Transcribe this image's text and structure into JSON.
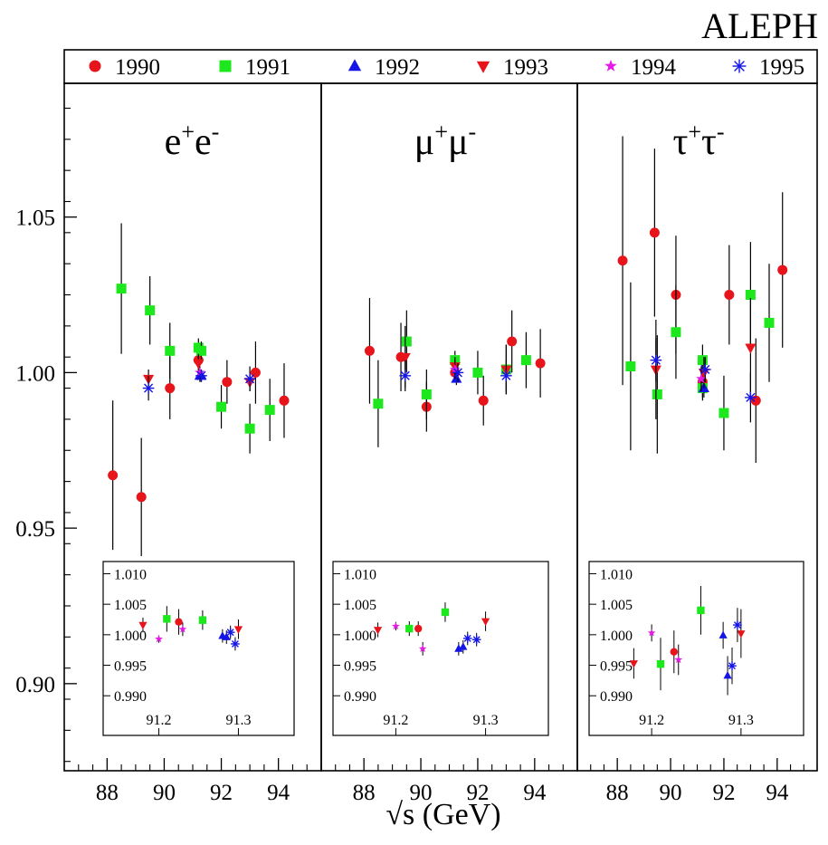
{
  "experiment": "ALEPH",
  "xlabel": "√s (GeV)",
  "colors": {
    "1990": "#e8141c",
    "1991": "#1de81d",
    "1992": "#1414e6",
    "1993": "#e8141c",
    "1994": "#e61ae6",
    "1995": "#1414e6"
  },
  "legend": [
    {
      "year": "1990",
      "marker": "circle"
    },
    {
      "year": "1991",
      "marker": "square"
    },
    {
      "year": "1992",
      "marker": "triangle-up"
    },
    {
      "year": "1993",
      "marker": "triangle-down"
    },
    {
      "year": "1994",
      "marker": "star"
    },
    {
      "year": "1995",
      "marker": "asterisk"
    }
  ],
  "chart_data": [
    {
      "type": "scatter",
      "title": "e⁺e⁻",
      "xlim": [
        86.5,
        95.5
      ],
      "ylim": [
        0.872,
        1.093
      ],
      "xticks": [
        88,
        90,
        92,
        94
      ],
      "yticks": [
        0.9,
        0.95,
        1.0,
        1.05
      ],
      "ytick_labels": [
        "0.90",
        "0.95",
        "1.00",
        "1.05"
      ],
      "series": [
        {
          "name": "1990",
          "points": [
            [
              88.2,
              0.967,
              0.024
            ],
            [
              89.2,
              0.96,
              0.019
            ],
            [
              90.2,
              0.995,
              0.01
            ],
            [
              91.2,
              1.004,
              0.003
            ],
            [
              92.2,
              0.997,
              0.007
            ],
            [
              93.2,
              1.0,
              0.01
            ],
            [
              94.2,
              0.991,
              0.012
            ]
          ]
        },
        {
          "name": "1991",
          "points": [
            [
              88.5,
              1.027,
              0.021
            ],
            [
              89.5,
              1.02,
              0.011
            ],
            [
              90.2,
              1.007,
              0.009
            ],
            [
              91.2,
              1.008,
              0.003
            ],
            [
              91.3,
              1.007,
              0.003
            ],
            [
              92.0,
              0.989,
              0.007
            ],
            [
              93.0,
              0.982,
              0.008
            ],
            [
              93.7,
              0.988,
              0.01
            ]
          ]
        },
        {
          "name": "1992",
          "points": [
            [
              91.25,
              0.999,
              0.002
            ],
            [
              91.3,
              0.999,
              0.002
            ]
          ]
        },
        {
          "name": "1993",
          "points": [
            [
              89.45,
              0.998,
              0.003
            ],
            [
              91.2,
              1.003,
              0.003
            ],
            [
              93.0,
              0.997,
              0.003
            ]
          ]
        },
        {
          "name": "1994",
          "points": [
            [
              91.25,
              1.0,
              0.002
            ]
          ]
        },
        {
          "name": "1995",
          "points": [
            [
              89.45,
              0.995,
              0.004
            ],
            [
              91.3,
              0.999,
              0.002
            ],
            [
              93.0,
              0.998,
              0.004
            ]
          ]
        }
      ],
      "inset": {
        "xlim": [
          91.13,
          91.37
        ],
        "ylim": [
          0.9835,
          1.012
        ],
        "xticks": [
          91.2,
          91.3
        ],
        "xtick_labels": [
          "91.2",
          "91.3"
        ],
        "yticks": [
          0.99,
          0.995,
          1.0,
          1.005,
          1.01
        ],
        "ytick_labels": [
          "0.990",
          "0.995",
          "1.000",
          "1.005",
          "1.010"
        ],
        "series": [
          {
            "name": "1990",
            "points": [
              [
                91.225,
                1.0021,
                0.0021
              ]
            ]
          },
          {
            "name": "1991",
            "points": [
              [
                91.21,
                1.0026,
                0.0021
              ],
              [
                91.255,
                1.0024,
                0.0016
              ]
            ]
          },
          {
            "name": "1992",
            "points": [
              [
                91.28,
                0.9998,
                0.0011
              ],
              [
                91.285,
                0.9996,
                0.0011
              ]
            ]
          },
          {
            "name": "1993",
            "points": [
              [
                91.18,
                1.0016,
                0.0012
              ],
              [
                91.3,
                1.0009,
                0.0016
              ]
            ]
          },
          {
            "name": "1994",
            "points": [
              [
                91.2,
                0.9993,
                0.0006
              ],
              [
                91.23,
                1.0009,
                0.0011
              ]
            ]
          },
          {
            "name": "1995",
            "points": [
              [
                91.29,
                1.0004,
                0.0011
              ],
              [
                91.296,
                0.9985,
                0.0011
              ]
            ]
          }
        ]
      }
    },
    {
      "type": "scatter",
      "title": "μ⁺μ⁻",
      "xlim": [
        86.5,
        95.5
      ],
      "ylim": [
        0.872,
        1.093
      ],
      "xticks": [
        88,
        90,
        92,
        94
      ],
      "series": [
        {
          "name": "1990",
          "points": [
            [
              88.2,
              1.007,
              0.017
            ],
            [
              89.3,
              1.005,
              0.011
            ],
            [
              90.2,
              0.989,
              0.008
            ],
            [
              91.2,
              1.0,
              0.003
            ],
            [
              92.2,
              0.991,
              0.008
            ],
            [
              93.2,
              1.01,
              0.01
            ],
            [
              94.2,
              1.003,
              0.011
            ]
          ]
        },
        {
          "name": "1991",
          "points": [
            [
              88.5,
              0.99,
              0.014
            ],
            [
              89.5,
              1.01,
              0.01
            ],
            [
              90.2,
              0.993,
              0.008
            ],
            [
              91.2,
              1.004,
              0.003
            ],
            [
              92.0,
              1.0,
              0.007
            ],
            [
              93.0,
              1.001,
              0.008
            ],
            [
              93.7,
              1.004,
              0.009
            ]
          ]
        },
        {
          "name": "1992",
          "points": [
            [
              91.25,
              0.998,
              0.002
            ]
          ]
        },
        {
          "name": "1993",
          "points": [
            [
              89.45,
              1.005,
              0.01
            ],
            [
              91.2,
              1.002,
              0.003
            ],
            [
              93.0,
              1.001,
              0.008
            ]
          ]
        },
        {
          "name": "1994",
          "points": [
            [
              91.2,
              1.001,
              0.003
            ]
          ]
        },
        {
          "name": "1995",
          "points": [
            [
              89.45,
              0.999,
              0.005
            ],
            [
              91.3,
              1.0,
              0.003
            ],
            [
              93.0,
              0.999,
              0.005
            ]
          ]
        }
      ],
      "inset": {
        "xlim": [
          91.13,
          91.37
        ],
        "ylim": [
          0.9835,
          1.012
        ],
        "xticks": [
          91.2,
          91.3
        ],
        "xtick_labels": [
          "91.2",
          "91.3"
        ],
        "yticks": [
          0.99,
          0.995,
          1.0,
          1.005,
          1.01
        ],
        "ytick_labels": [
          "0.990",
          "0.995",
          "1.000",
          "1.005",
          "1.010"
        ],
        "series": [
          {
            "name": "1990",
            "points": [
              [
                91.225,
                1.001,
                0.0012
              ]
            ]
          },
          {
            "name": "1991",
            "points": [
              [
                91.215,
                1.001,
                0.0012
              ],
              [
                91.255,
                1.0037,
                0.0016
              ]
            ]
          },
          {
            "name": "1992",
            "points": [
              [
                91.27,
                0.9977,
                0.0011
              ],
              [
                91.275,
                0.998,
                0.0011
              ]
            ]
          },
          {
            "name": "1993",
            "points": [
              [
                91.18,
                1.0008,
                0.0012
              ],
              [
                91.3,
                1.0022,
                0.0016
              ]
            ]
          },
          {
            "name": "1994",
            "points": [
              [
                91.2,
                1.0014,
                0.0007
              ],
              [
                91.23,
                0.9977,
                0.0011
              ]
            ]
          },
          {
            "name": "1995",
            "points": [
              [
                91.28,
                0.9994,
                0.0011
              ],
              [
                91.29,
                0.9992,
                0.0011
              ]
            ]
          }
        ]
      }
    },
    {
      "type": "scatter",
      "title": "τ⁺τ⁻",
      "xlim": [
        86.5,
        95.5
      ],
      "ylim": [
        0.872,
        1.093
      ],
      "xticks": [
        88,
        90,
        92,
        94
      ],
      "series": [
        {
          "name": "1990",
          "points": [
            [
              88.2,
              1.036,
              0.04
            ],
            [
              89.4,
              1.045,
              0.027
            ],
            [
              90.2,
              1.025,
              0.019
            ],
            [
              91.2,
              0.997,
              0.005
            ],
            [
              92.2,
              1.025,
              0.016
            ],
            [
              93.2,
              0.991,
              0.02
            ],
            [
              94.2,
              1.033,
              0.025
            ]
          ]
        },
        {
          "name": "1991",
          "points": [
            [
              88.5,
              1.002,
              0.027
            ],
            [
              89.5,
              0.993,
              0.019
            ],
            [
              90.2,
              1.013,
              0.015
            ],
            [
              91.2,
              1.004,
              0.005
            ],
            [
              91.2,
              0.995,
              0.004
            ],
            [
              92.0,
              0.987,
              0.012
            ],
            [
              93.0,
              1.025,
              0.017
            ],
            [
              93.7,
              1.016,
              0.019
            ]
          ]
        },
        {
          "name": "1992",
          "points": [
            [
              91.25,
              0.995,
              0.003
            ]
          ]
        },
        {
          "name": "1993",
          "points": [
            [
              89.45,
              1.001,
              0.016
            ],
            [
              91.25,
              1.0,
              0.005
            ],
            [
              93.0,
              1.008,
              0.016
            ]
          ]
        },
        {
          "name": "1994",
          "points": [
            [
              91.15,
              0.998,
              0.004
            ]
          ]
        },
        {
          "name": "1995",
          "points": [
            [
              89.45,
              1.004,
              0.007
            ],
            [
              91.3,
              1.001,
              0.004
            ],
            [
              93.0,
              0.992,
              0.008
            ]
          ]
        }
      ],
      "inset": {
        "xlim": [
          91.13,
          91.37
        ],
        "ylim": [
          0.9835,
          1.012
        ],
        "xticks": [
          91.2,
          91.3
        ],
        "xtick_labels": [
          "91.2",
          "91.3"
        ],
        "yticks": [
          0.99,
          0.995,
          1.0,
          1.005,
          1.01
        ],
        "ytick_labels": [
          "0.990",
          "0.995",
          "1.000",
          "1.005",
          "1.010"
        ],
        "series": [
          {
            "name": "1990",
            "points": [
              [
                91.225,
                0.9972,
                0.0035
              ]
            ]
          },
          {
            "name": "1991",
            "points": [
              [
                91.21,
                0.9952,
                0.0043
              ],
              [
                91.255,
                1.004,
                0.004
              ]
            ]
          },
          {
            "name": "1992",
            "points": [
              [
                91.28,
                0.9999,
                0.0022
              ],
              [
                91.285,
                0.9933,
                0.0032
              ]
            ]
          },
          {
            "name": "1993",
            "points": [
              [
                91.18,
                0.9953,
                0.0025
              ],
              [
                91.3,
                1.0002,
                0.004
              ]
            ]
          },
          {
            "name": "1994",
            "points": [
              [
                91.2,
                1.0003,
                0.0014
              ],
              [
                91.23,
                0.9959,
                0.0025
              ]
            ]
          },
          {
            "name": "1995",
            "points": [
              [
                91.29,
                0.9949,
                0.003
              ],
              [
                91.296,
                1.0016,
                0.0028
              ]
            ]
          }
        ]
      }
    }
  ]
}
